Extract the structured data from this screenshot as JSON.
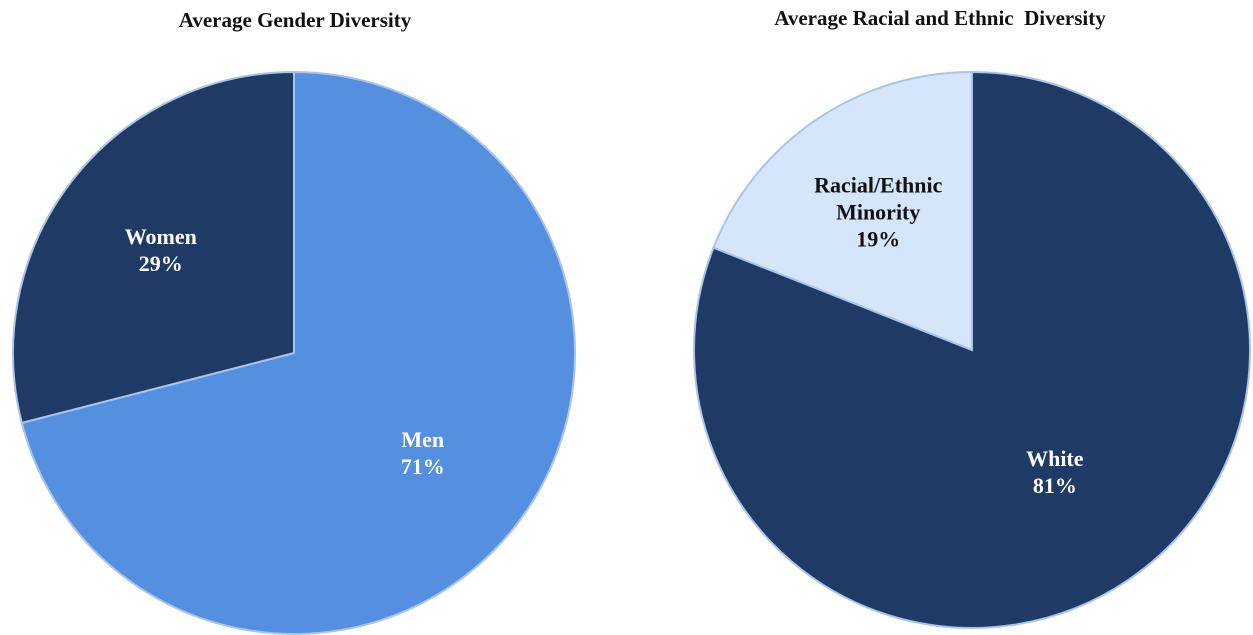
{
  "chart_data": [
    {
      "type": "pie",
      "title": "Average Gender Diversity",
      "categories": [
        "Men",
        "Women"
      ],
      "values": [
        71,
        29
      ],
      "value_labels": [
        "71%",
        "29%"
      ],
      "colors": [
        "#5590e0",
        "#1f3a64"
      ]
    },
    {
      "type": "pie",
      "title": "Average Racial and Ethnic  Diversity",
      "categories": [
        "White",
        "Racial/Ethnic Minority"
      ],
      "values": [
        81,
        19
      ],
      "value_labels": [
        "81%",
        "19%"
      ],
      "colors": [
        "#1f3a64",
        "#d6e6fa"
      ]
    }
  ]
}
